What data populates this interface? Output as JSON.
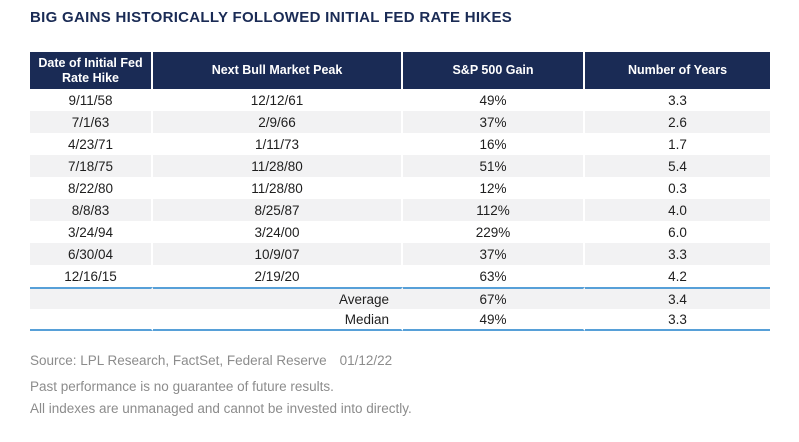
{
  "title": "BIG GAINS HISTORICALLY FOLLOWED INITIAL FED RATE HIKES",
  "chart_data": {
    "type": "table",
    "title": "BIG GAINS HISTORICALLY FOLLOWED INITIAL FED RATE HIKES",
    "columns": [
      "Date of Initial Fed Rate Hike",
      "Next Bull Market Peak",
      "S&P 500 Gain",
      "Number of Years"
    ],
    "rows": [
      [
        "9/11/58",
        "12/12/61",
        "49%",
        "3.3"
      ],
      [
        "7/1/63",
        "2/9/66",
        "37%",
        "2.6"
      ],
      [
        "4/23/71",
        "1/11/73",
        "16%",
        "1.7"
      ],
      [
        "7/18/75",
        "11/28/80",
        "51%",
        "5.4"
      ],
      [
        "8/22/80",
        "11/28/80",
        "12%",
        "0.3"
      ],
      [
        "8/8/83",
        "8/25/87",
        "112%",
        "4.0"
      ],
      [
        "3/24/94",
        "3/24/00",
        "229%",
        "6.0"
      ],
      [
        "6/30/04",
        "10/9/07",
        "37%",
        "3.3"
      ],
      [
        "12/16/15",
        "2/19/20",
        "63%",
        "4.2"
      ]
    ],
    "summary_rows": [
      [
        "Average",
        "67%",
        "3.4"
      ],
      [
        "Median",
        "49%",
        "3.3"
      ]
    ]
  },
  "footer": {
    "source": "Source: LPL Research, FactSet, Federal Reserve",
    "source_date": "01/12/22",
    "disclaimer_1": "Past performance is no guarantee of future results.",
    "disclaimer_2": "All indexes are unmanaged and cannot be invested into directly."
  },
  "colors": {
    "navy": "#1a2b55",
    "row_stripe": "#f2f2f3",
    "rule_blue": "#57a0d8",
    "footer_gray": "#8c8c8c",
    "header_text": "#ffffff"
  }
}
